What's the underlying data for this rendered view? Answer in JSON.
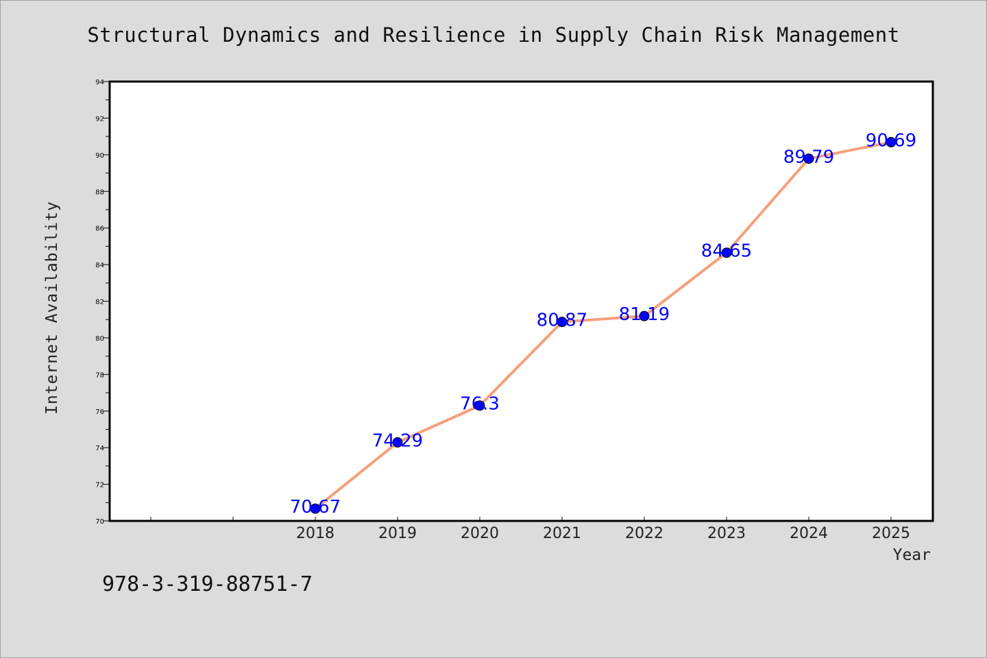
{
  "chart_data": {
    "type": "line",
    "title": "Structural Dynamics and Resilience in Supply Chain Risk Management",
    "xlabel": "Year",
    "ylabel": "Internet Availability",
    "categories": [
      "2018",
      "2019",
      "2020",
      "2021",
      "2022",
      "2023",
      "2024",
      "2025"
    ],
    "series": [
      {
        "values": [
          70.67,
          74.29,
          76.3,
          80.87,
          81.19,
          84.65,
          89.79,
          90.69
        ]
      }
    ],
    "data_labels": [
      "70.67",
      "74.29",
      "76.3",
      "80.87",
      "81.19",
      "84.65",
      "89.79",
      "90.69"
    ],
    "ylim": [
      70,
      94
    ],
    "yticks": [
      "70",
      "72",
      "74",
      "76",
      "78",
      "80",
      "82",
      "84",
      "86",
      "88",
      "90",
      "92",
      "94"
    ],
    "grid": false,
    "legend": "none",
    "colors": {
      "line": "#f4a07a",
      "marker": "#0000ff",
      "label": "#0000ff",
      "background": "#dcdcdc",
      "plot_background": "#ffffff"
    }
  },
  "footer": {
    "isbn": "978-3-319-88751-7"
  }
}
